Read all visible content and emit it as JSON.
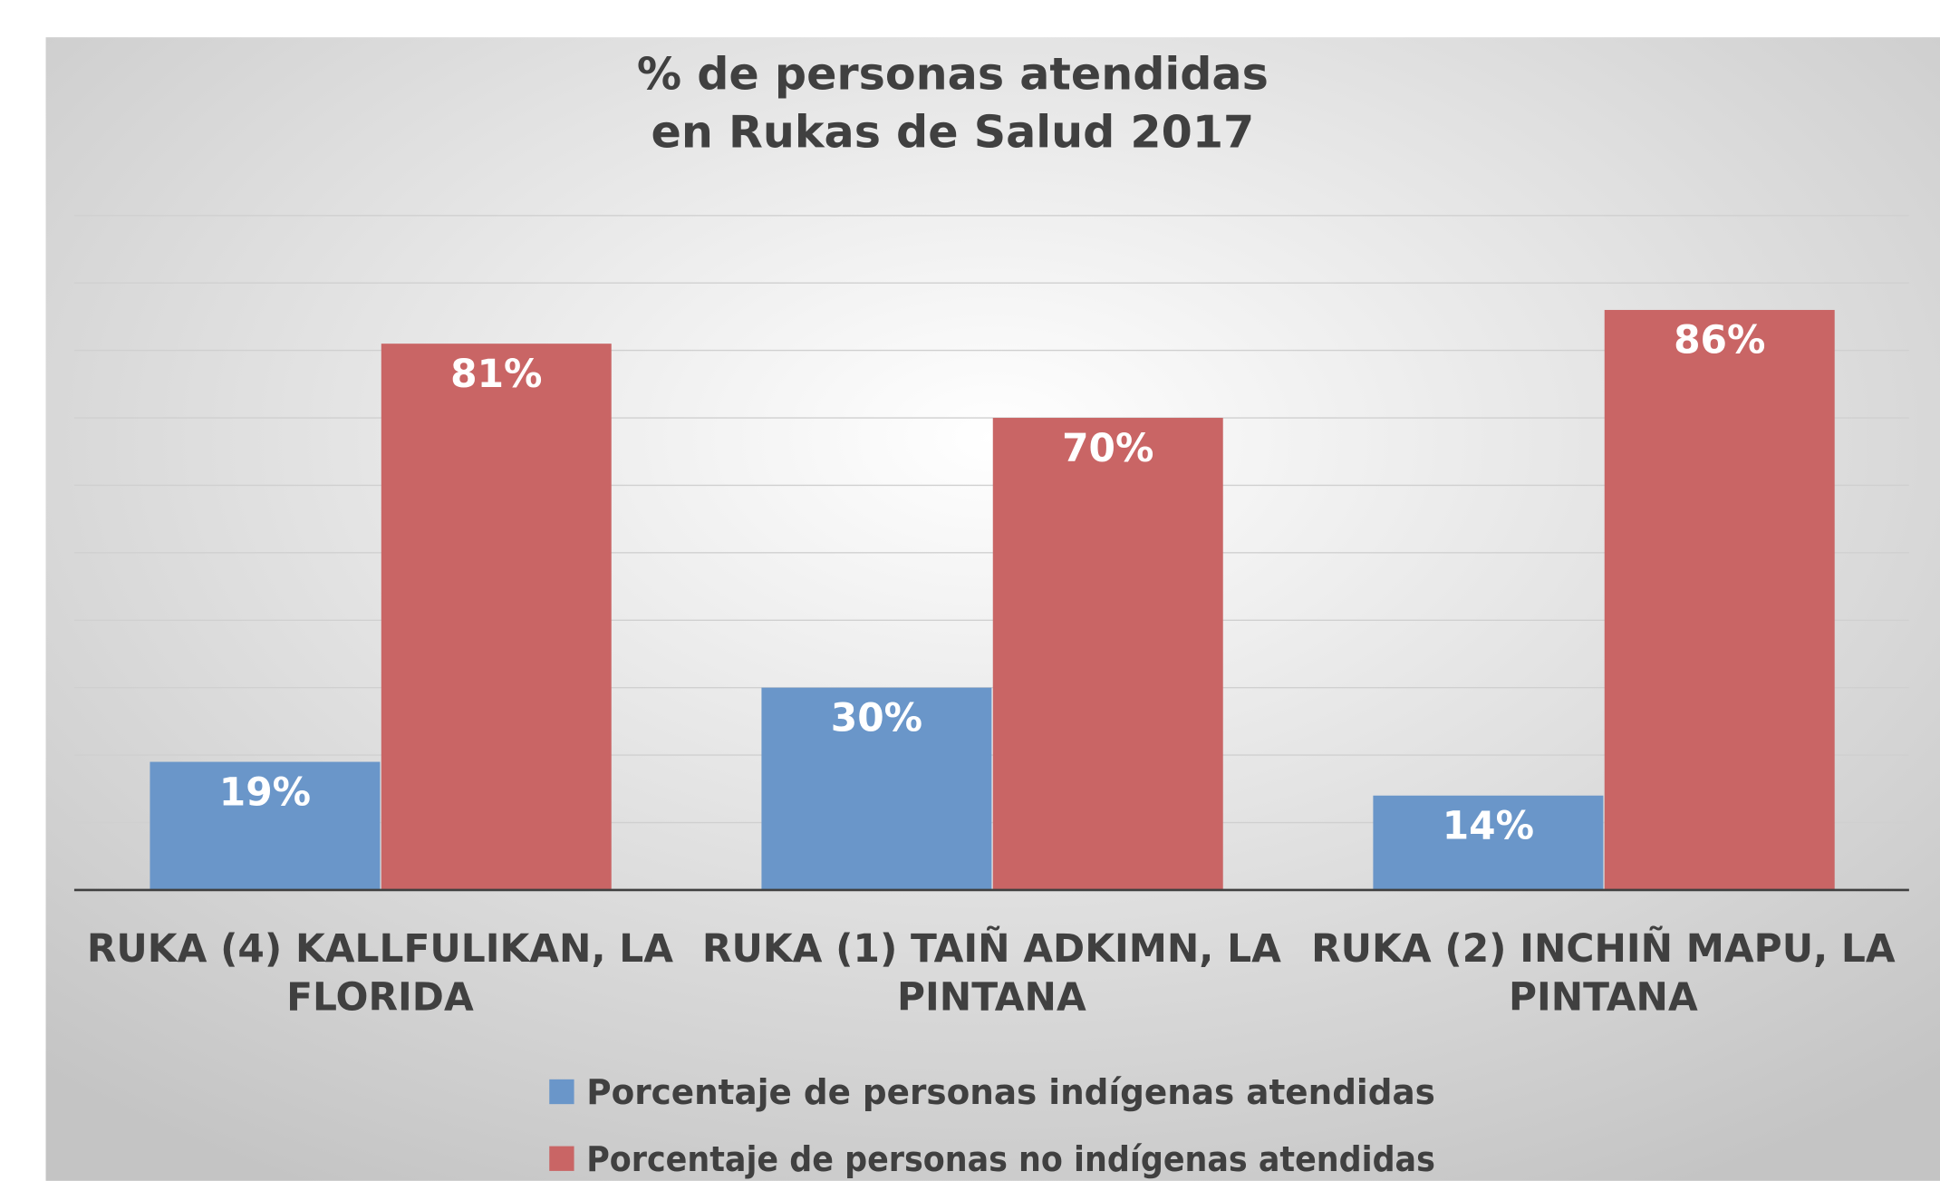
{
  "chart_data": {
    "type": "bar",
    "title": "% de personas atendidas en Rukas de Salud 2017",
    "categories": [
      "RUKA (4) KALLFULIKAN, LA FLORIDA",
      "RUKA (1) TAIÑ ADKIMN, LA PINTANA",
      "RUKA (2) INCHIÑ MAPU, LA PINTANA"
    ],
    "series": [
      {
        "name": "Porcentaje de personas indígenas atendidas",
        "color": "#6a96c9",
        "values": [
          19,
          30,
          14
        ],
        "value_labels": [
          "19%",
          "30%",
          "14%"
        ]
      },
      {
        "name": "Porcentaje de personas no indígenas atendidas",
        "color": "#c96565",
        "values": [
          81,
          70,
          86
        ],
        "value_labels": [
          "81%",
          "70%",
          "86%"
        ]
      }
    ],
    "ylim": [
      0,
      100
    ],
    "yticks": [
      0,
      10,
      20,
      30,
      40,
      50,
      60,
      70,
      80,
      90,
      100
    ],
    "grid": true,
    "legend": "bottom"
  }
}
